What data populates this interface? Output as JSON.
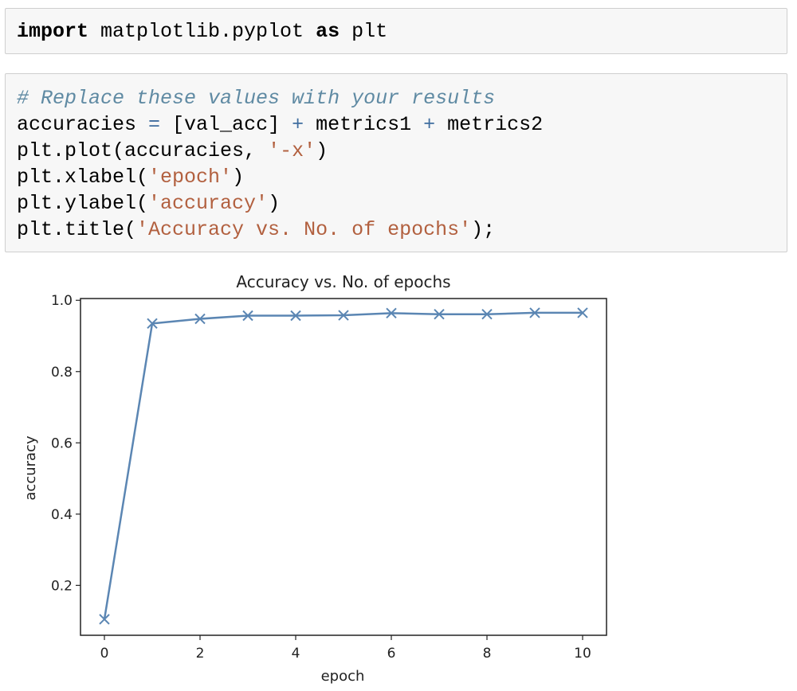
{
  "cells": [
    {
      "lines": [
        [
          {
            "t": "import",
            "c": "kw"
          },
          {
            "t": " matplotlib.pyplot "
          },
          {
            "t": "as",
            "c": "kw"
          },
          {
            "t": " plt"
          }
        ]
      ]
    },
    {
      "lines": [
        [
          {
            "t": "# Replace these values with your results",
            "c": "cm"
          }
        ],
        [
          {
            "t": "accuracies "
          },
          {
            "t": "=",
            "c": "op"
          },
          {
            "t": " [val_acc] "
          },
          {
            "t": "+",
            "c": "op"
          },
          {
            "t": " metrics1 "
          },
          {
            "t": "+",
            "c": "op"
          },
          {
            "t": " metrics2"
          }
        ],
        [
          {
            "t": "plt.plot(accuracies, "
          },
          {
            "t": "'-x'",
            "c": "str"
          },
          {
            "t": ")"
          }
        ],
        [
          {
            "t": "plt.xlabel("
          },
          {
            "t": "'epoch'",
            "c": "str"
          },
          {
            "t": ")"
          }
        ],
        [
          {
            "t": "plt.ylabel("
          },
          {
            "t": "'accuracy'",
            "c": "str"
          },
          {
            "t": ")"
          }
        ],
        [
          {
            "t": "plt.title("
          },
          {
            "t": "'Accuracy vs. No. of epochs'",
            "c": "str"
          },
          {
            "t": ");"
          }
        ]
      ]
    }
  ],
  "chart_data": {
    "type": "line",
    "title": "Accuracy vs. No. of epochs",
    "xlabel": "epoch",
    "ylabel": "accuracy",
    "x": [
      0,
      1,
      2,
      3,
      4,
      5,
      6,
      7,
      8,
      9,
      10
    ],
    "series": [
      {
        "values": [
          0.105,
          0.935,
          0.948,
          0.957,
          0.957,
          0.958,
          0.964,
          0.961,
          0.961,
          0.965,
          0.965
        ],
        "marker": "x",
        "color": "#5b86b3"
      }
    ],
    "xticks": [
      "0",
      "2",
      "4",
      "6",
      "8",
      "10"
    ],
    "yticks": [
      "0.2",
      "0.4",
      "0.6",
      "0.8",
      "1.0"
    ],
    "xlim": [
      -0.5,
      10.5
    ],
    "ylim": [
      0.06,
      1.005
    ],
    "grid": false
  }
}
